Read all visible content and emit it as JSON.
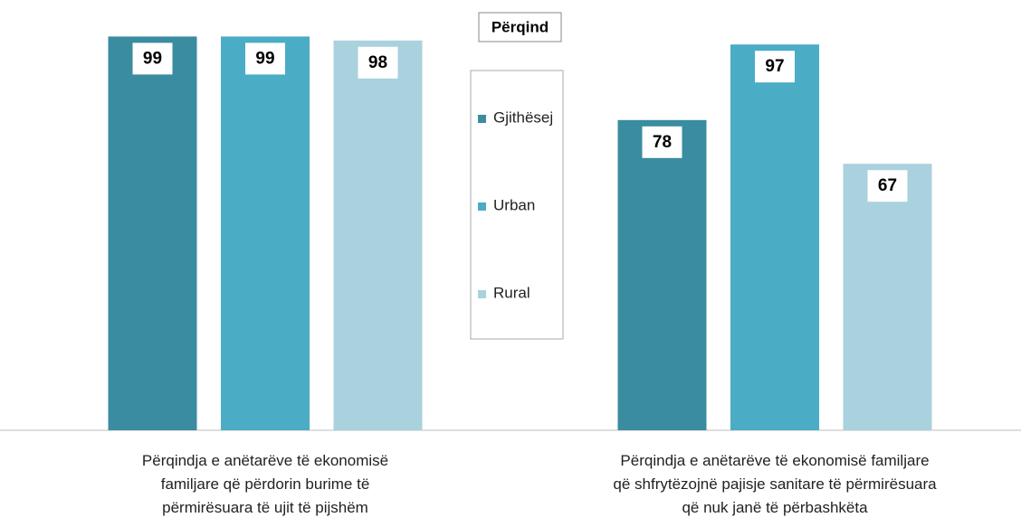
{
  "chart_data": {
    "type": "bar",
    "legend_title": "Përqind",
    "categories": [
      "Përqindja e anëtarëve të ekonomisë\nfamiljare që përdorin burime të\npërmirësuara të ujit të pijshëm",
      "Përqindja e anëtarëve të ekonomisë familjare\nqë shfrytëzojnë pajisje sanitare të përmirësuara\nqë nuk janë të përbashkëta"
    ],
    "series": [
      {
        "name": "Gjithësej",
        "color": "#3a8ca0",
        "values": [
          99,
          78
        ]
      },
      {
        "name": "Urban",
        "color": "#4bacc6",
        "values": [
          99,
          97
        ]
      },
      {
        "name": "Rural",
        "color": "#a9d1de",
        "values": [
          98,
          67
        ]
      }
    ],
    "ylim": [
      0,
      100
    ],
    "legend": "center"
  }
}
